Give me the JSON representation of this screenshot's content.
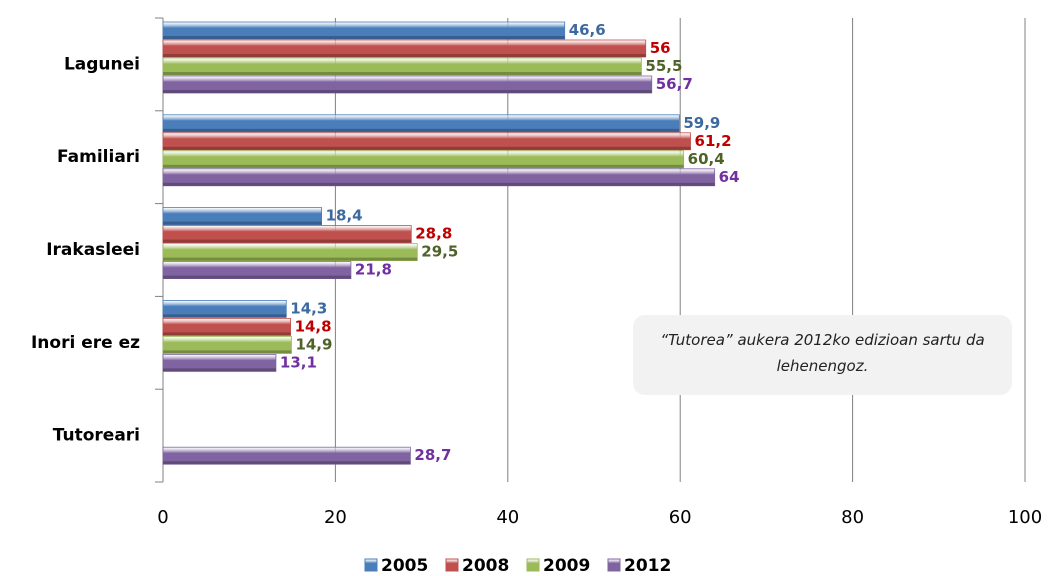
{
  "chart_data": {
    "type": "hbar",
    "categories": [
      "Lagunei",
      "Familiari",
      "Irakasleei",
      "Inori ere ez",
      "Tutoreari"
    ],
    "series": [
      {
        "name": "2005",
        "color": "#4a7ebb",
        "label_color": "#3c6aa0",
        "values": [
          46.6,
          59.9,
          18.4,
          14.3,
          null
        ],
        "value_labels": [
          "46,6",
          "59,9",
          "18,4",
          "14,3",
          null
        ]
      },
      {
        "name": "2008",
        "color": "#c0504d",
        "label_color": "#c00000",
        "values": [
          56,
          61.2,
          28.8,
          14.8,
          null
        ],
        "value_labels": [
          "56",
          "61,2",
          "28,8",
          "14,8",
          null
        ]
      },
      {
        "name": "2009",
        "color": "#9bbb59",
        "label_color": "#4f6228",
        "values": [
          55.5,
          60.4,
          29.5,
          14.9,
          null
        ],
        "value_labels": [
          "55,5",
          "60,4",
          "29,5",
          "14,9",
          null
        ]
      },
      {
        "name": "2012",
        "color": "#8064a2",
        "label_color": "#7030a0",
        "values": [
          56.7,
          64,
          21.8,
          13.1,
          28.7
        ],
        "value_labels": [
          "56,7",
          "64",
          "21,8",
          "13,1",
          "28,7"
        ]
      }
    ],
    "xlim": [
      0,
      100
    ],
    "xticks": [
      0,
      20,
      40,
      60,
      80,
      100
    ],
    "grid": true,
    "legend": "bottom",
    "annotation": "“Tutorea” aukera 2012ko edizioan sartu da lehenengoz."
  }
}
